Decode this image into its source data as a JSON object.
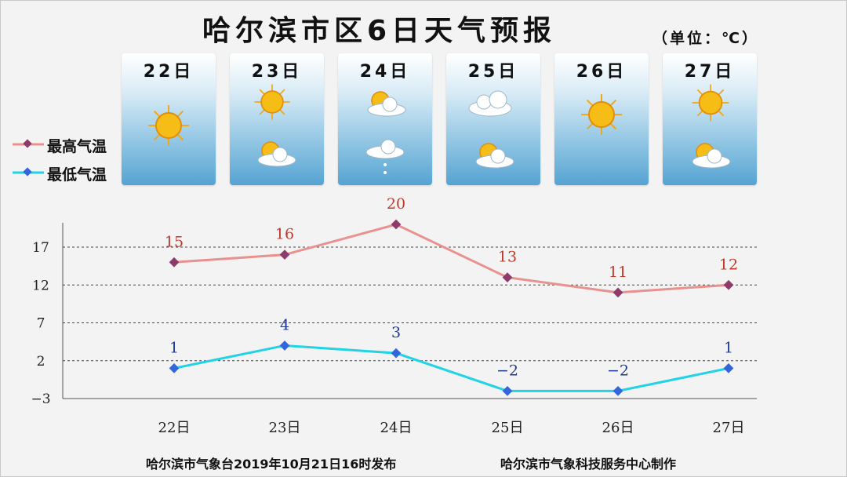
{
  "title": "哈尔滨市区6日天气预报",
  "unit": "（单位：℃）",
  "days": [
    {
      "date": "22日",
      "weather": [
        "sun-icon"
      ]
    },
    {
      "date": "23日",
      "weather": [
        "sun-icon",
        "partly-cloudy-icon"
      ]
    },
    {
      "date": "24日",
      "weather": [
        "partly-cloudy-icon",
        "cloud-light-rain-icon"
      ]
    },
    {
      "date": "25日",
      "weather": [
        "cloud-icon",
        "partly-cloudy-icon"
      ]
    },
    {
      "date": "26日",
      "weather": [
        "sun-icon"
      ]
    },
    {
      "date": "27日",
      "weather": [
        "sun-icon",
        "partly-cloudy-icon"
      ]
    }
  ],
  "legend": {
    "high": "最高气温",
    "low": "最低气温"
  },
  "colors": {
    "high_line": "#e8918e",
    "high_marker": "#8e3a6a",
    "high_label": "#c0392b",
    "low_line": "#22d3e6",
    "low_marker": "#3366dd",
    "low_label": "#1f3a93"
  },
  "chart_data": {
    "type": "line",
    "categories": [
      "22日",
      "23日",
      "24日",
      "25日",
      "26日",
      "27日"
    ],
    "series": [
      {
        "name": "最高气温",
        "values": [
          15,
          16,
          20,
          13,
          11,
          12
        ]
      },
      {
        "name": "最低气温",
        "values": [
          1,
          4,
          3,
          -2,
          -2,
          1
        ]
      }
    ],
    "yticks": [
      17,
      12,
      7,
      2,
      -3
    ],
    "ytick_labels": [
      "17",
      "12",
      "7",
      "2",
      "−3"
    ],
    "ylim": [
      -3,
      20
    ],
    "grid": "dashed horizontal",
    "legend_position": "left"
  },
  "footer": {
    "left": "哈尔滨市气象台2019年10月21日16时发布",
    "right": "哈尔滨市气象科技服务中心制作"
  }
}
